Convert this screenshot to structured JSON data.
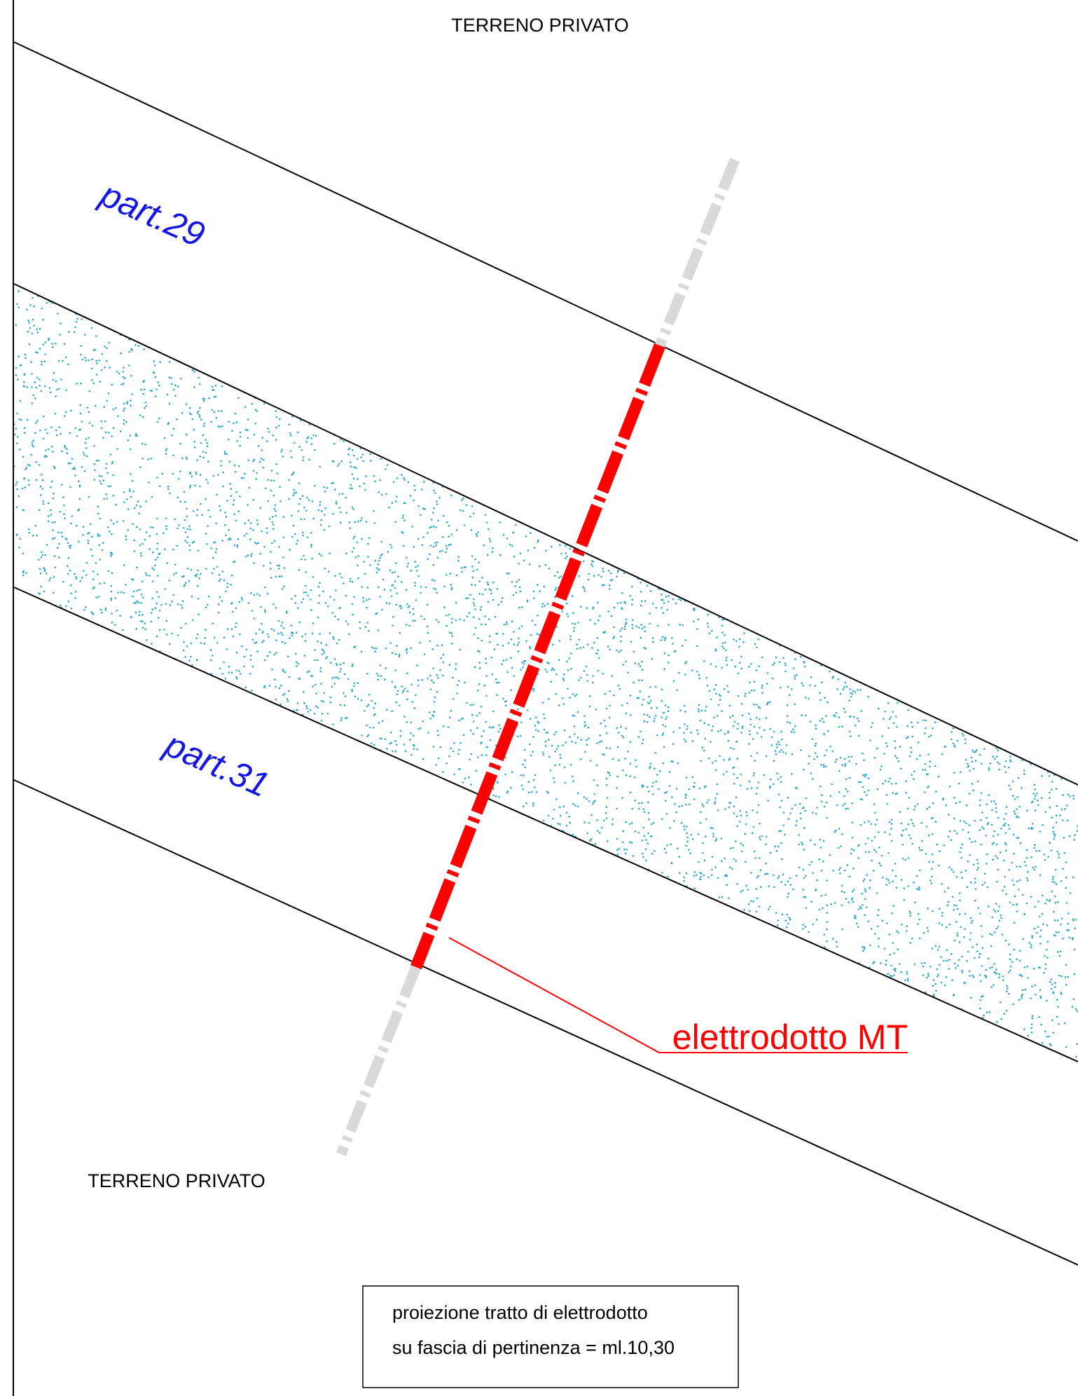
{
  "labels": {
    "top": "TERRENO PRIVATO",
    "bottom": "TERRENO PRIVATO"
  },
  "parcels": {
    "upper": "part.29",
    "lower": "part.31"
  },
  "power_line": {
    "label": "elettrodotto MT"
  },
  "note": {
    "line1": "proiezione tratto di elettrodotto",
    "line2": "su fascia di pertinenza = ml.10,30"
  },
  "colors": {
    "boundary": "#000000",
    "power_line": "#ff0000",
    "power_line_extension": "#d9d9d9",
    "dots": "#2aa7c9",
    "parcel_label": "#1515e6"
  }
}
